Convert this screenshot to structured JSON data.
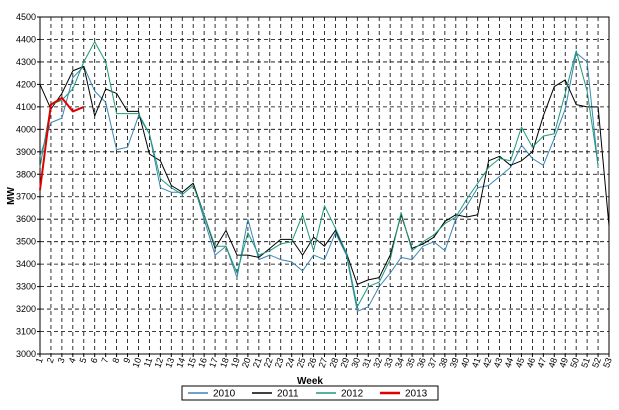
{
  "chart_data": {
    "type": "line",
    "title": "",
    "xlabel": "Week",
    "ylabel": "MW",
    "xlim": [
      1,
      53
    ],
    "ylim": [
      3000,
      4500
    ],
    "y_ticks": [
      3000,
      3100,
      3200,
      3300,
      3400,
      3500,
      3600,
      3700,
      3800,
      3900,
      4000,
      4100,
      4200,
      4300,
      4400,
      4500
    ],
    "x_ticks": [
      "1",
      "2",
      "3",
      "4",
      "5",
      "6",
      "7",
      "8",
      "9",
      "10",
      "11",
      "12",
      "13",
      "14",
      "15",
      "16",
      "17",
      "18",
      "19",
      "20",
      "21",
      "22",
      "23",
      "24",
      "25",
      "26",
      "27",
      "28",
      "29",
      "30",
      "31",
      "32",
      "33",
      "34",
      "35",
      "36",
      "37",
      "38",
      "39",
      "40",
      "41",
      "42",
      "43",
      "44",
      "45",
      "46",
      "47",
      "48",
      "49",
      "50",
      "51",
      "52",
      "53"
    ],
    "grid": true,
    "legend_position": "bottom",
    "series": [
      {
        "name": "2010",
        "color": "#3a86b4",
        "width": 1,
        "x": [
          1,
          2,
          3,
          4,
          5,
          6,
          7,
          8,
          9,
          10,
          11,
          12,
          13,
          14,
          15,
          16,
          17,
          18,
          19,
          20,
          21,
          22,
          23,
          24,
          25,
          26,
          27,
          28,
          29,
          30,
          31,
          32,
          33,
          34,
          35,
          36,
          37,
          38,
          39,
          40,
          41,
          42,
          43,
          44,
          45,
          46,
          47,
          48,
          49,
          50,
          51,
          52
        ],
        "y": [
          3880,
          4030,
          4050,
          4230,
          4280,
          4170,
          4120,
          3910,
          3920,
          4060,
          3980,
          3740,
          3720,
          3720,
          3760,
          3600,
          3440,
          3480,
          3340,
          3600,
          3420,
          3440,
          3420,
          3410,
          3370,
          3440,
          3420,
          3540,
          3440,
          3190,
          3210,
          3300,
          3360,
          3430,
          3420,
          3480,
          3500,
          3460,
          3600,
          3660,
          3740,
          3750,
          3790,
          3830,
          3930,
          3870,
          3840,
          3960,
          4090,
          4340,
          4300,
          3830
        ]
      },
      {
        "name": "2011",
        "color": "#000000",
        "width": 1,
        "x": [
          1,
          2,
          3,
          4,
          5,
          6,
          7,
          8,
          9,
          10,
          11,
          12,
          13,
          14,
          15,
          16,
          17,
          18,
          19,
          20,
          21,
          22,
          23,
          24,
          25,
          26,
          27,
          28,
          29,
          30,
          31,
          32,
          33,
          34,
          35,
          36,
          37,
          38,
          39,
          40,
          41,
          42,
          43,
          44,
          45,
          46,
          47,
          48,
          49,
          50,
          51,
          52,
          53
        ],
        "y": [
          4200,
          4090,
          4160,
          4260,
          4280,
          4060,
          4180,
          4160,
          4080,
          4080,
          3890,
          3860,
          3750,
          3720,
          3760,
          3620,
          3470,
          3550,
          3440,
          3440,
          3430,
          3470,
          3510,
          3510,
          3440,
          3520,
          3480,
          3550,
          3450,
          3310,
          3330,
          3340,
          3440,
          3620,
          3470,
          3490,
          3520,
          3590,
          3620,
          3610,
          3620,
          3860,
          3880,
          3840,
          3860,
          3900,
          4060,
          4190,
          4220,
          4110,
          4100,
          4100,
          3570
        ]
      },
      {
        "name": "2012",
        "color": "#1e9a7a",
        "width": 1,
        "x": [
          1,
          2,
          3,
          4,
          5,
          6,
          7,
          8,
          9,
          10,
          11,
          12,
          13,
          14,
          15,
          16,
          17,
          18,
          19,
          20,
          21,
          22,
          23,
          24,
          25,
          26,
          27,
          28,
          29,
          30,
          31,
          32,
          33,
          34,
          35,
          36,
          37,
          38,
          39,
          40,
          41,
          42,
          43,
          44,
          45,
          46,
          47,
          48,
          49,
          50,
          51,
          52
        ],
        "y": [
          3830,
          4110,
          4130,
          4180,
          4300,
          4390,
          4300,
          4070,
          4070,
          4070,
          3980,
          3780,
          3740,
          3710,
          3750,
          3620,
          3480,
          3480,
          3360,
          3540,
          3440,
          3460,
          3490,
          3500,
          3620,
          3460,
          3660,
          3560,
          3450,
          3210,
          3300,
          3320,
          3420,
          3630,
          3460,
          3500,
          3530,
          3580,
          3610,
          3690,
          3760,
          3830,
          3870,
          3860,
          4010,
          3920,
          3970,
          3980,
          4160,
          4350,
          4170,
          3840
        ]
      },
      {
        "name": "2013",
        "color": "#e00000",
        "width": 2,
        "x": [
          1,
          2,
          3,
          4,
          5
        ],
        "y": [
          3730,
          4110,
          4140,
          4080,
          4100
        ]
      }
    ]
  }
}
